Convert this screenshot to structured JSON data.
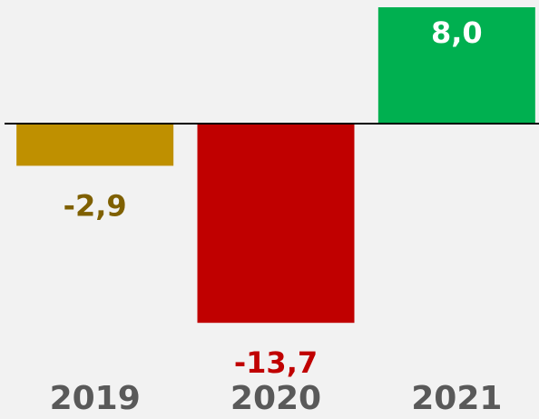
{
  "chart_data": {
    "type": "bar",
    "categories": [
      "2019",
      "2020",
      "2021"
    ],
    "values": [
      -2.9,
      -13.7,
      8.0
    ],
    "value_labels": [
      "-2,9",
      "-13,7",
      "8,0"
    ],
    "colors": [
      "#bf9000",
      "#c00000",
      "#00b050"
    ],
    "label_colors": [
      "#7f6000",
      "#c00000",
      "#ffffff"
    ],
    "ylim": [
      -15,
      8.5
    ]
  }
}
